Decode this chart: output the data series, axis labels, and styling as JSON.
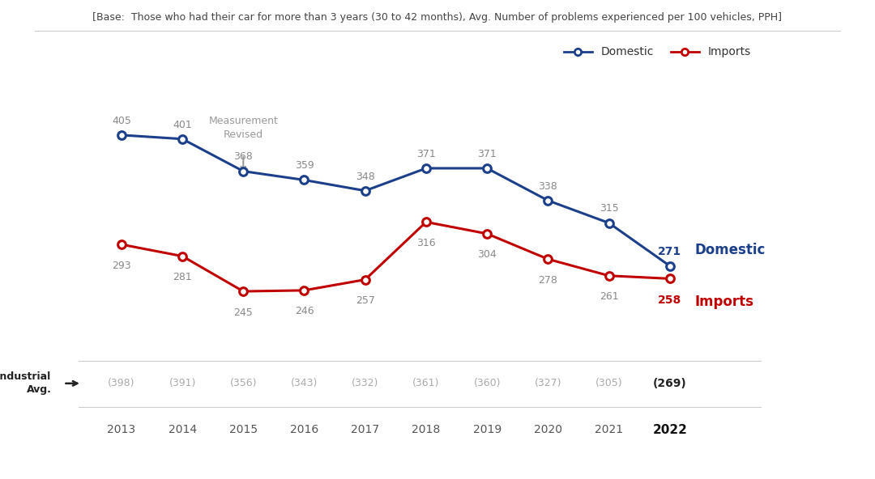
{
  "years": [
    2013,
    2014,
    2015,
    2016,
    2017,
    2018,
    2019,
    2020,
    2021,
    2022
  ],
  "domestic": [
    405,
    401,
    368,
    359,
    348,
    371,
    371,
    338,
    315,
    271
  ],
  "imports": [
    293,
    281,
    245,
    246,
    257,
    316,
    304,
    278,
    261,
    258
  ],
  "industrial_avg": [
    398,
    391,
    356,
    343,
    332,
    361,
    360,
    327,
    305,
    269
  ],
  "domestic_color": "#1B3F8B",
  "imports_color": "#C00000",
  "industrial_avg_color": "#AAAAAA",
  "bg_color": "#FFFFFF",
  "subtitle": "[Base:  Those who had their car for more than 3 years (30 to 42 months), Avg. Number of problems experienced per 100 vehicles, PPH]",
  "legend_domestic": "Domestic",
  "legend_imports": "Imports"
}
